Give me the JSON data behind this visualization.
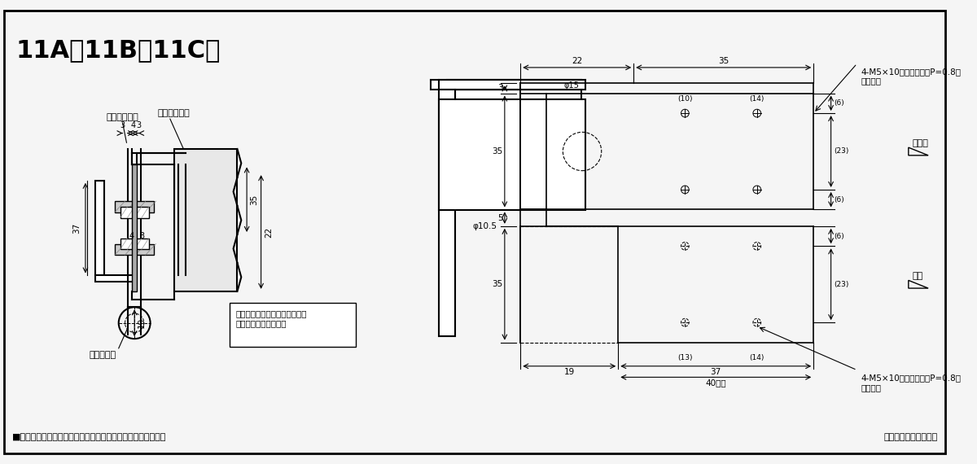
{
  "title": "11A・11B・11C用",
  "bg_color": "#f5f5f5",
  "border_color": "#000000",
  "line_color": "#000000",
  "fig_width": 12.0,
  "fig_height": 5.7,
  "bottom_text1": "■タップ型は（　）内寸法にて製作出来ます。（オプション）",
  "bottom_text2": "本図は右開きを示す。",
  "note_text": "セットネジは軸の抜止めです。\n必ず締込んで下さい。",
  "label_urawl": "裏板（別途）",
  "label_urawr": "裏板（別途）",
  "label_setsuneji": "セットネジ",
  "label_door": "ドア側",
  "label_waku": "枚側",
  "label_screw_top": "4-M5×10タ皿小ネジ（P=0.8）\n（別途）",
  "label_screw_bot": "4-M5×10タ皿小ネジ（P=0.8）\n（別途）"
}
